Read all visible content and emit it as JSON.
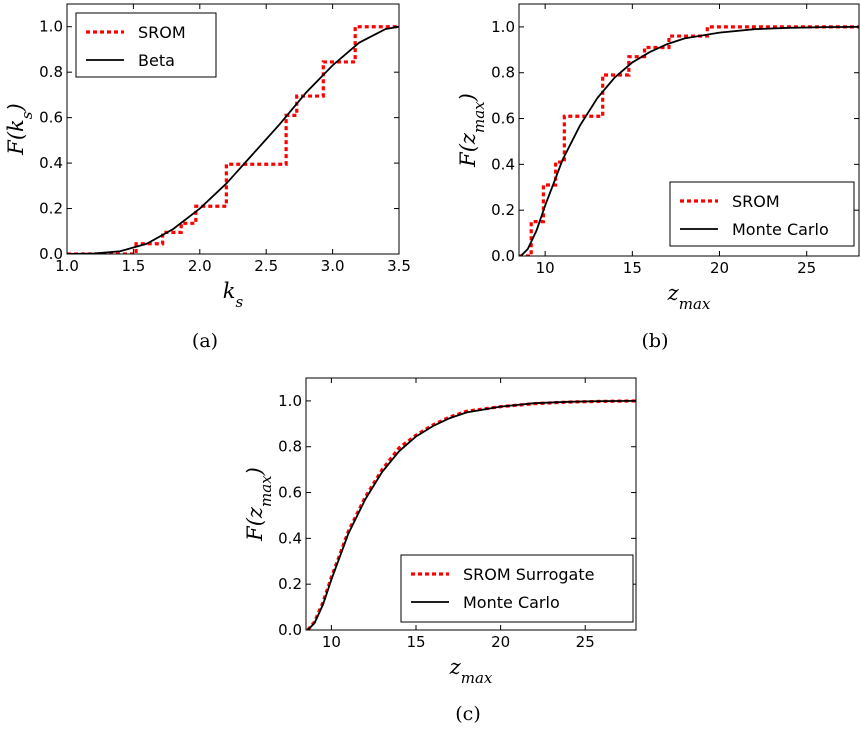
{
  "chart_data": [
    {
      "type": "line",
      "panel_label": "(a)",
      "xlabel": "k_s",
      "ylabel": "F(k_s)",
      "xlim": [
        1.0,
        3.5
      ],
      "ylim": [
        0.0,
        1.1
      ],
      "x_ticks": [
        "1.0",
        "1.5",
        "2.0",
        "2.5",
        "3.0",
        "3.5"
      ],
      "y_ticks": [
        "0.0",
        "0.2",
        "0.4",
        "0.6",
        "0.8",
        "1.0"
      ],
      "legend_placement": "top-left",
      "series": [
        {
          "name": "SROM",
          "style": "dotted-step",
          "color": "#ff0000",
          "x": [
            1.0,
            1.52,
            1.52,
            1.72,
            1.72,
            1.86,
            1.86,
            1.97,
            1.97,
            2.2,
            2.2,
            2.65,
            2.65,
            2.73,
            2.73,
            2.93,
            2.93,
            3.17,
            3.17,
            3.5
          ],
          "y": [
            0.0,
            0.0,
            0.045,
            0.045,
            0.095,
            0.095,
            0.135,
            0.135,
            0.21,
            0.21,
            0.395,
            0.395,
            0.61,
            0.61,
            0.695,
            0.695,
            0.845,
            0.845,
            1.0,
            1.0
          ]
        },
        {
          "name": "Beta",
          "style": "solid",
          "color": "#000000",
          "x": [
            1.0,
            1.2,
            1.4,
            1.6,
            1.8,
            2.0,
            2.2,
            2.4,
            2.6,
            2.8,
            3.0,
            3.2,
            3.4,
            3.5
          ],
          "y": [
            0.0,
            0.002,
            0.012,
            0.045,
            0.11,
            0.2,
            0.31,
            0.44,
            0.57,
            0.71,
            0.83,
            0.93,
            0.99,
            1.0
          ]
        }
      ]
    },
    {
      "type": "line",
      "panel_label": "(b)",
      "xlabel": "z_max",
      "ylabel": "F(z_max)",
      "xlim": [
        8.5,
        28
      ],
      "ylim": [
        0.0,
        1.1
      ],
      "x_ticks": [
        "10",
        "15",
        "20",
        "25"
      ],
      "y_ticks": [
        "0.0",
        "0.2",
        "0.4",
        "0.6",
        "0.8",
        "1.0"
      ],
      "legend_placement": "bottom-right",
      "series": [
        {
          "name": "SROM",
          "style": "dotted-step",
          "color": "#ff0000",
          "x": [
            8.5,
            9.2,
            9.2,
            9.9,
            9.9,
            10.6,
            10.6,
            11.1,
            11.1,
            13.3,
            13.3,
            14.8,
            14.8,
            15.7,
            15.7,
            17.1,
            17.1,
            19.3,
            19.3,
            28
          ],
          "y": [
            0.0,
            0.0,
            0.15,
            0.15,
            0.31,
            0.31,
            0.41,
            0.41,
            0.61,
            0.61,
            0.79,
            0.79,
            0.87,
            0.87,
            0.91,
            0.91,
            0.96,
            0.96,
            1.0,
            1.0
          ]
        },
        {
          "name": "Monte Carlo",
          "style": "solid",
          "color": "#000000",
          "x": [
            8.6,
            9.0,
            9.5,
            10,
            10.5,
            11,
            12,
            13,
            14,
            15,
            16,
            17,
            18,
            20,
            22,
            24,
            26,
            28
          ],
          "y": [
            0.0,
            0.03,
            0.11,
            0.22,
            0.32,
            0.42,
            0.57,
            0.69,
            0.78,
            0.845,
            0.89,
            0.925,
            0.95,
            0.975,
            0.99,
            0.996,
            0.999,
            1.0
          ]
        }
      ]
    },
    {
      "type": "line",
      "panel_label": "(c)",
      "xlabel": "z_max",
      "ylabel": "F(z_max)",
      "xlim": [
        8.5,
        28
      ],
      "ylim": [
        0.0,
        1.1
      ],
      "x_ticks": [
        "10",
        "15",
        "20",
        "25"
      ],
      "y_ticks": [
        "0.0",
        "0.2",
        "0.4",
        "0.6",
        "0.8",
        "1.0"
      ],
      "legend_placement": "bottom-right",
      "series": [
        {
          "name": "SROM Surrogate",
          "style": "dotted",
          "color": "#ff0000",
          "x": [
            8.6,
            9.0,
            9.5,
            10,
            10.5,
            11,
            12,
            13,
            14,
            15,
            16,
            17,
            18,
            20,
            22,
            24,
            26,
            28
          ],
          "y": [
            0.0,
            0.035,
            0.12,
            0.23,
            0.33,
            0.43,
            0.58,
            0.7,
            0.795,
            0.85,
            0.895,
            0.93,
            0.955,
            0.975,
            0.988,
            0.995,
            0.998,
            1.0
          ]
        },
        {
          "name": "Monte Carlo",
          "style": "solid",
          "color": "#000000",
          "x": [
            8.6,
            9.0,
            9.5,
            10,
            10.5,
            11,
            12,
            13,
            14,
            15,
            16,
            17,
            18,
            20,
            22,
            24,
            26,
            28
          ],
          "y": [
            0.0,
            0.03,
            0.11,
            0.22,
            0.32,
            0.42,
            0.57,
            0.69,
            0.78,
            0.845,
            0.89,
            0.925,
            0.95,
            0.975,
            0.99,
            0.996,
            0.999,
            1.0
          ]
        }
      ]
    }
  ]
}
